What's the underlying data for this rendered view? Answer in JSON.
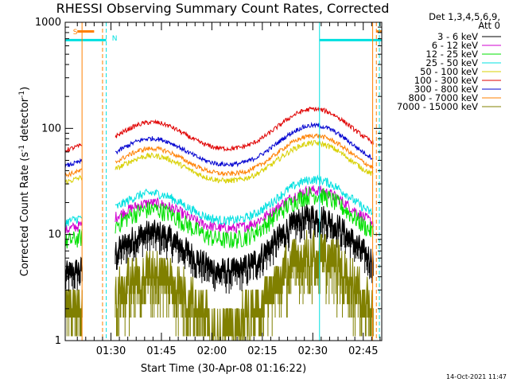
{
  "chart_data": {
    "type": "line",
    "title": "RHESSI Observing Summary Count Rates, Corrected",
    "ylabel": "Corrected Count Rate (s⁻¹ detector⁻¹)",
    "ylabel_parts": {
      "main": "Corrected Count Rate (s",
      "sup1": "-1",
      "mid": " detector",
      "sup2": "-1",
      "end": ")"
    },
    "xlabel": "Start Time (30-Apr-08 01:16:22)",
    "yscale": "log",
    "ylim": [
      1,
      1000
    ],
    "xlim_minutes": [
      1276.4,
      1370.5
    ],
    "x_ticks": [
      {
        "label": "01:30",
        "minutes": 1290
      },
      {
        "label": "01:45",
        "minutes": 1305
      },
      {
        "label": "02:00",
        "minutes": 1320
      },
      {
        "label": "02:15",
        "minutes": 1335
      },
      {
        "label": "02:30",
        "minutes": 1350
      },
      {
        "label": "02:45",
        "minutes": 1365
      }
    ],
    "y_ticks": [
      {
        "label": "1",
        "value": 1
      },
      {
        "label": "10",
        "value": 10
      },
      {
        "label": "100",
        "value": 100
      },
      {
        "label": "1000",
        "value": 1000
      }
    ],
    "legend_header": [
      "Det 1,3,4,5,6,9,",
      "Att 0"
    ],
    "series": [
      {
        "name": "3 - 6 keV",
        "color": "#000000",
        "base": 4.5,
        "amp": 12,
        "noise": 0.25
      },
      {
        "name": "6 - 12 keV",
        "color": "#d000d0",
        "base": 11,
        "amp": 16,
        "noise": 0.12
      },
      {
        "name": "12 - 25 keV",
        "color": "#00e000",
        "base": 8.5,
        "amp": 16,
        "noise": 0.2
      },
      {
        "name": "25 - 50 keV",
        "color": "#00e0e0",
        "base": 13,
        "amp": 21,
        "noise": 0.1
      },
      {
        "name": "50 - 100 keV",
        "color": "#d8d000",
        "base": 31,
        "amp": 44,
        "noise": 0.06
      },
      {
        "name": "100 - 300 keV",
        "color": "#e00000",
        "base": 62,
        "amp": 95,
        "noise": 0.05
      },
      {
        "name": "300 - 800 keV",
        "color": "#0000d0",
        "base": 44,
        "amp": 66,
        "noise": 0.05
      },
      {
        "name": "800 - 7000 keV",
        "color": "#ff8000",
        "base": 36,
        "amp": 52,
        "noise": 0.05
      },
      {
        "name": "7000 - 15000 keV",
        "color": "#808000",
        "base": 1.5,
        "amp": 6.5,
        "noise": 0.45
      }
    ],
    "flags": {
      "saa_label": "S",
      "night_label": "N",
      "saa_color": "#ff8000",
      "night_color": "#00e0e0"
    }
  },
  "footer": {
    "date_stamp": "14-Oct-2021 11:47"
  }
}
